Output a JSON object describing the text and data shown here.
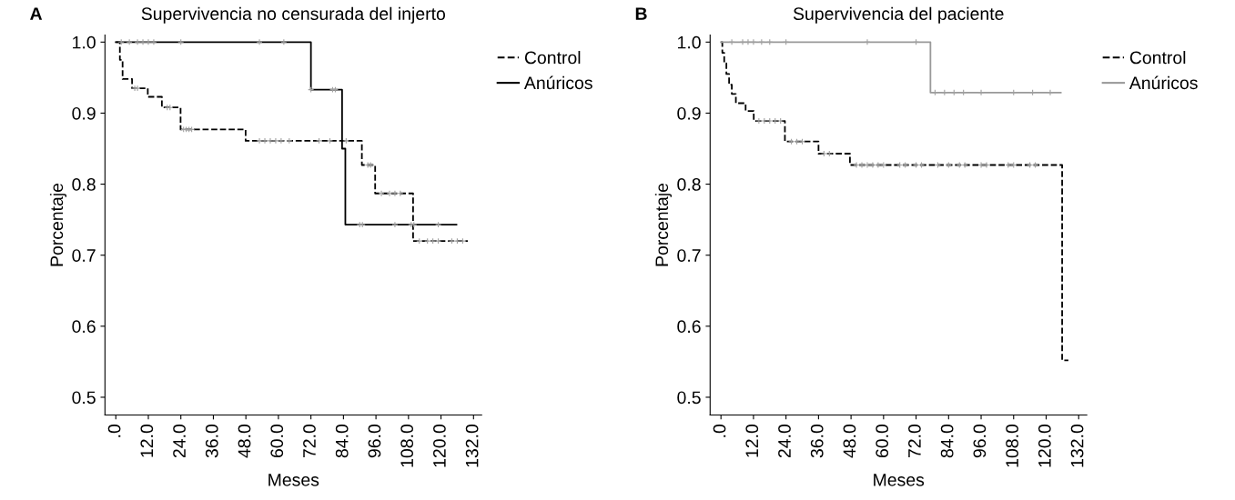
{
  "chart_data": [
    {
      "type": "step",
      "title": "Supervivencia no censurada del injerto",
      "xlabel": "Meses",
      "ylabel": "Porcentaje",
      "annotations": [
        "A"
      ],
      "xlim": [
        -4,
        135
      ],
      "ylim": [
        0.475,
        1.01
      ],
      "xticks": [
        {
          "value": 0,
          "label": ".0"
        },
        {
          "value": 12,
          "label": "12.0"
        },
        {
          "value": 24,
          "label": "24.0"
        },
        {
          "value": 36,
          "label": "36.0"
        },
        {
          "value": 48,
          "label": "48.0"
        },
        {
          "value": 60,
          "label": "60.0"
        },
        {
          "value": 72,
          "label": "72.0"
        },
        {
          "value": 84,
          "label": "84.0"
        },
        {
          "value": 96,
          "label": "96.0"
        },
        {
          "value": 108,
          "label": "108.0"
        },
        {
          "value": 120,
          "label": "120.0"
        },
        {
          "value": 132,
          "label": "132.0"
        }
      ],
      "yticks": [
        0.5,
        0.6,
        0.7,
        0.8,
        0.9,
        {
          "value": 1,
          "label": "1.0"
        }
      ],
      "grid": false,
      "legend": "top right",
      "marker": "none",
      "series": [
        {
          "name": "Control",
          "color": "#000000",
          "line_style": "dashed",
          "x": [
            0,
            1.5,
            2.5,
            6,
            11.8,
            17,
            23.9,
            47.9,
            90.8,
            95.7,
            109.7,
            129.9
          ],
          "values": [
            1.0,
            0.975,
            0.948,
            0.935,
            0.923,
            0.908,
            0.877,
            0.861,
            0.827,
            0.787,
            0.72,
            0.72
          ]
        },
        {
          "name": "Anúricos",
          "color": "#000000",
          "line_style": "solid",
          "x": [
            0,
            72,
            83.5,
            84.7,
            125.7
          ],
          "values": [
            1.0,
            0.933,
            0.85,
            0.743,
            0.743
          ]
        },
        {
          "type": "scatter",
          "color": "#a0a0a0",
          "marker": "cross",
          "x": [
            7,
            8,
            19,
            20,
            25,
            26,
            27,
            28,
            53,
            55,
            57,
            59,
            61,
            64,
            75,
            79,
            85,
            93,
            94,
            98,
            101,
            103,
            105,
            112,
            115,
            117,
            119,
            124,
            126,
            128
          ],
          "values": [
            0.935,
            0.935,
            0.908,
            0.908,
            0.877,
            0.877,
            0.877,
            0.877,
            0.861,
            0.861,
            0.861,
            0.861,
            0.861,
            0.861,
            0.861,
            0.861,
            0.861,
            0.827,
            0.827,
            0.787,
            0.787,
            0.787,
            0.787,
            0.72,
            0.72,
            0.72,
            0.72,
            0.72,
            0.72,
            0.72
          ]
        },
        {
          "type": "scatter",
          "color": "#a0a0a0",
          "marker": "cross",
          "x": [
            2,
            5,
            8,
            10,
            12,
            14,
            24,
            53,
            62,
            72,
            80,
            81,
            90,
            91,
            103,
            109,
            110,
            119
          ],
          "values": [
            1.0,
            1.0,
            1.0,
            1.0,
            1.0,
            1.0,
            1.0,
            1.0,
            1.0,
            0.933,
            0.933,
            0.933,
            0.743,
            0.743,
            0.743,
            0.743,
            0.743,
            0.743
          ]
        }
      ]
    },
    {
      "type": "step",
      "title": "Supervivencia del paciente",
      "xlabel": "Meses",
      "ylabel": "Porcentaje",
      "annotations": [
        "B"
      ],
      "xlim": [
        -4,
        135
      ],
      "ylim": [
        0.475,
        1.01
      ],
      "xticks": [
        {
          "value": 0,
          "label": ".0"
        },
        {
          "value": 12,
          "label": "12.0"
        },
        {
          "value": 24,
          "label": "24.0"
        },
        {
          "value": 36,
          "label": "36.0"
        },
        {
          "value": 48,
          "label": "48.0"
        },
        {
          "value": 60,
          "label": "60.0"
        },
        {
          "value": 72,
          "label": "72.0"
        },
        {
          "value": 84,
          "label": "84.0"
        },
        {
          "value": 96,
          "label": "96.0"
        },
        {
          "value": 108,
          "label": "108.0"
        },
        {
          "value": 120,
          "label": "120.0"
        },
        {
          "value": 132,
          "label": "132.0"
        }
      ],
      "yticks": [
        0.5,
        0.6,
        0.7,
        0.8,
        0.9,
        {
          "value": 1,
          "label": "1.0"
        }
      ],
      "grid": false,
      "legend": "top right",
      "marker": "none",
      "series": [
        {
          "name": "Control",
          "color": "#000000",
          "line_style": "dashed",
          "x": [
            0,
            0.5,
            1.2,
            2,
            3,
            4,
            5.5,
            9.1,
            12.1,
            23.6,
            36.0,
            47.6,
            125.9,
            128.2
          ],
          "values": [
            1.0,
            0.985,
            0.97,
            0.955,
            0.94,
            0.927,
            0.914,
            0.903,
            0.889,
            0.86,
            0.843,
            0.827,
            0.552,
            0.552
          ]
        },
        {
          "name": "Anúricos",
          "color": "#999999",
          "line_style": "solid",
          "x": [
            0,
            77.3,
            125.4
          ],
          "values": [
            1.0,
            0.929,
            0.929
          ]
        },
        {
          "type": "scatter",
          "color": "#a0a0a0",
          "marker": "cross",
          "x": [
            14,
            16,
            18,
            20,
            22,
            26,
            28,
            30,
            38,
            40,
            50,
            52,
            54,
            56,
            58,
            60,
            66,
            68,
            72,
            74,
            80,
            84,
            88,
            90,
            96,
            98,
            106,
            108,
            114,
            116
          ],
          "values": [
            0.889,
            0.889,
            0.889,
            0.889,
            0.889,
            0.86,
            0.86,
            0.86,
            0.843,
            0.843,
            0.827,
            0.827,
            0.827,
            0.827,
            0.827,
            0.827,
            0.827,
            0.827,
            0.827,
            0.827,
            0.827,
            0.827,
            0.827,
            0.827,
            0.827,
            0.827,
            0.827,
            0.827,
            0.827,
            0.827
          ]
        },
        {
          "type": "scatter",
          "color": "#a0a0a0",
          "marker": "cross",
          "x": [
            4,
            8,
            10,
            12,
            15,
            18,
            24,
            54,
            72,
            79,
            82.5,
            86,
            89.5,
            96,
            108,
            115,
            121.5
          ],
          "values": [
            1.0,
            1.0,
            1.0,
            1.0,
            1.0,
            1.0,
            1.0,
            1.0,
            1.0,
            0.929,
            0.929,
            0.929,
            0.929,
            0.929,
            0.929,
            0.929,
            0.929
          ]
        }
      ]
    }
  ]
}
